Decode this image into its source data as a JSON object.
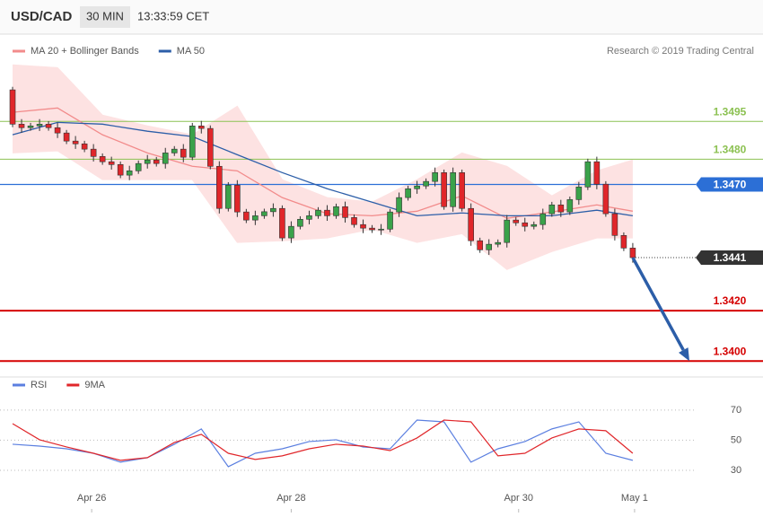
{
  "header": {
    "symbol": "USD/CAD",
    "interval": "30 MIN",
    "time": "13:33:59 CET"
  },
  "credit": "Research © 2019 Trading Central",
  "chart_data": [
    {
      "type": "candlestick",
      "up_color": "#3aa24a",
      "down_color": "#e0262a",
      "xlim": [
        -1.2,
        75.5
      ],
      "ylim": [
        1.33937,
        1.35271
      ],
      "x": [
        0,
        1,
        2,
        3,
        4,
        5,
        6,
        7,
        8,
        9,
        10,
        11,
        12,
        13,
        14,
        15,
        16,
        17,
        18,
        19,
        20,
        21,
        22,
        23,
        24,
        25,
        26,
        27,
        28,
        29,
        30,
        31,
        32,
        33,
        34,
        35,
        36,
        37,
        38,
        39,
        40,
        41,
        42,
        43,
        44,
        45,
        46,
        47,
        48,
        49,
        50,
        51,
        52,
        53,
        54,
        55,
        56,
        57,
        58,
        59,
        60,
        61,
        62,
        63,
        64,
        65,
        66,
        67,
        68,
        69
      ],
      "open": [
        1.35075,
        1.34939,
        1.34925,
        1.34932,
        1.34939,
        1.34925,
        1.34904,
        1.34872,
        1.34861,
        1.3484,
        1.34811,
        1.3479,
        1.34779,
        1.34737,
        1.34754,
        1.34783,
        1.34797,
        1.34783,
        1.34825,
        1.3484,
        1.34808,
        1.34932,
        1.34922,
        1.34772,
        1.34605,
        1.34697,
        1.34591,
        1.34559,
        1.34576,
        1.34592,
        1.34605,
        1.34488,
        1.34534,
        1.34562,
        1.34576,
        1.34598,
        1.34576,
        1.34612,
        1.34569,
        1.34541,
        1.34527,
        1.3452,
        1.34523,
        1.34591,
        1.34648,
        1.34683,
        1.34694,
        1.34712,
        1.34747,
        1.34612,
        1.34747,
        1.34605,
        1.34477,
        1.34441,
        1.34463,
        1.3447,
        1.34559,
        1.34548,
        1.34534,
        1.34541,
        1.34584,
        1.34619,
        1.34591,
        1.3464,
        1.3469,
        1.3479,
        1.34701,
        1.34584,
        1.34498,
        1.34448
      ],
      "high": [
        1.35087,
        1.34959,
        1.34944,
        1.34959,
        1.34951,
        1.34945,
        1.34916,
        1.34892,
        1.34873,
        1.3486,
        1.34823,
        1.3481,
        1.34791,
        1.34774,
        1.34795,
        1.34817,
        1.34809,
        1.34845,
        1.34852,
        1.3486,
        1.34944,
        1.34952,
        1.34934,
        1.34792,
        1.34709,
        1.34717,
        1.34603,
        1.34596,
        1.34604,
        1.34625,
        1.34617,
        1.34554,
        1.34574,
        1.34596,
        1.3461,
        1.34618,
        1.34624,
        1.34632,
        1.34581,
        1.34561,
        1.34539,
        1.34543,
        1.34603,
        1.34668,
        1.34695,
        1.34714,
        1.34724,
        1.34767,
        1.34759,
        1.34767,
        1.34759,
        1.34625,
        1.34489,
        1.34483,
        1.34482,
        1.34579,
        1.34571,
        1.34568,
        1.34553,
        1.34604,
        1.34631,
        1.34639,
        1.34652,
        1.3471,
        1.34802,
        1.3481,
        1.34713,
        1.34604,
        1.3451,
        1.34468
      ],
      "low": [
        1.34927,
        1.34905,
        1.34913,
        1.34912,
        1.34913,
        1.34884,
        1.3486,
        1.34841,
        1.34828,
        1.34791,
        1.34778,
        1.34759,
        1.34725,
        1.34717,
        1.34742,
        1.34763,
        1.34771,
        1.34763,
        1.34813,
        1.34788,
        1.34796,
        1.34902,
        1.3476,
        1.34585,
        1.34593,
        1.34571,
        1.34547,
        1.34539,
        1.34564,
        1.34572,
        1.34476,
        1.34468,
        1.34522,
        1.34542,
        1.34564,
        1.34556,
        1.34564,
        1.34549,
        1.34529,
        1.34507,
        1.34508,
        1.345,
        1.34511,
        1.34571,
        1.34636,
        1.34663,
        1.34682,
        1.34692,
        1.346,
        1.34592,
        1.34593,
        1.34457,
        1.34429,
        1.34421,
        1.34451,
        1.3445,
        1.34536,
        1.34514,
        1.34522,
        1.34521,
        1.34572,
        1.34571,
        1.34579,
        1.3462,
        1.34678,
        1.34681,
        1.34572,
        1.34478,
        1.34436,
        1.3439
      ],
      "close": [
        1.34939,
        1.34925,
        1.34932,
        1.34939,
        1.34925,
        1.34904,
        1.34872,
        1.34861,
        1.3484,
        1.34811,
        1.3479,
        1.34779,
        1.34737,
        1.34754,
        1.34783,
        1.34797,
        1.34783,
        1.34825,
        1.3484,
        1.34808,
        1.34932,
        1.34922,
        1.34772,
        1.34605,
        1.34697,
        1.34591,
        1.34559,
        1.34576,
        1.34592,
        1.34605,
        1.34488,
        1.34534,
        1.34562,
        1.34576,
        1.34598,
        1.34576,
        1.34612,
        1.34569,
        1.34541,
        1.34527,
        1.3452,
        1.34523,
        1.34591,
        1.34648,
        1.34683,
        1.34694,
        1.34712,
        1.34747,
        1.34612,
        1.34747,
        1.34605,
        1.34477,
        1.34441,
        1.34463,
        1.3447,
        1.34559,
        1.34548,
        1.34534,
        1.34541,
        1.34584,
        1.34619,
        1.34591,
        1.3464,
        1.3469,
        1.3479,
        1.34701,
        1.34584,
        1.34498,
        1.34448,
        1.3441
      ],
      "series": [
        {
          "name": "MA 20 + Bollinger Bands",
          "color": "#f28b8b",
          "band_color": "#fde2e2",
          "x": [
            0,
            5,
            10,
            15,
            20,
            25,
            30,
            35,
            40,
            45,
            50,
            55,
            60,
            65,
            69
          ],
          "values": [
            1.34986,
            1.35003,
            1.34897,
            1.34825,
            1.34772,
            1.34754,
            1.34648,
            1.34584,
            1.34576,
            1.34594,
            1.34655,
            1.34566,
            1.34591,
            1.34619,
            1.34594
          ],
          "upper": [
            1.35174,
            1.35163,
            1.34975,
            1.34932,
            1.34897,
            1.3501,
            1.34719,
            1.34648,
            1.3463,
            1.34719,
            1.34825,
            1.34772,
            1.34655,
            1.34754,
            1.34797
          ],
          "lower": [
            1.34825,
            1.34833,
            1.34719,
            1.34719,
            1.34719,
            1.3447,
            1.34477,
            1.34488,
            1.34523,
            1.3447,
            1.34505,
            1.34363,
            1.34434,
            1.34488,
            1.34488
          ]
        },
        {
          "name": "MA 50",
          "color": "#2c5ea8",
          "x": [
            0,
            5,
            10,
            15,
            20,
            25,
            30,
            35,
            40,
            45,
            50,
            55,
            60,
            65,
            69
          ],
          "values": [
            1.34897,
            1.34946,
            1.34939,
            1.34911,
            1.3489,
            1.34818,
            1.34747,
            1.34683,
            1.3463,
            1.34576,
            1.34587,
            1.34576,
            1.34576,
            1.34598,
            1.34576
          ]
        }
      ],
      "levels": [
        {
          "value": 1.3495,
          "label": "1.3495",
          "color": "#8cc152",
          "style": "thin",
          "label_style": "text"
        },
        {
          "value": 1.348,
          "label": "1.3480",
          "color": "#8cc152",
          "style": "thin",
          "label_style": "text"
        },
        {
          "value": 1.347,
          "label": "1.3470",
          "color": "#2c6fd6",
          "style": "medium",
          "label_style": "box"
        },
        {
          "value": 1.3441,
          "label": "1.3441",
          "color": "#333333",
          "style": "dotted",
          "label_style": "box"
        },
        {
          "value": 1.342,
          "label": "1.3420",
          "color": "#d50000",
          "style": "thick",
          "label_style": "text"
        },
        {
          "value": 1.34,
          "label": "1.3400",
          "color": "#d50000",
          "style": "thick",
          "label_style": "text"
        }
      ],
      "arrow_color": "#2c5ea8"
    },
    {
      "type": "line",
      "xlim": [
        -1.2,
        75.5
      ],
      "ylim": [
        5.5,
        80.1
      ],
      "yticks": [
        30,
        50,
        70
      ],
      "grid": true,
      "xticks": [
        {
          "value": 8.8,
          "label": "Apr 26"
        },
        {
          "value": 31,
          "label": "Apr 28"
        },
        {
          "value": 56.3,
          "label": "Apr 30"
        },
        {
          "value": 69.2,
          "label": "May 1"
        }
      ],
      "series": [
        {
          "name": "RSI",
          "color": "#5b7fe0",
          "x": [
            0,
            3,
            6,
            9,
            12,
            15,
            18,
            21,
            24,
            27,
            30,
            33,
            36,
            39,
            42,
            45,
            48,
            51,
            54,
            57,
            60,
            63,
            66,
            69
          ],
          "values": [
            47.3,
            46.1,
            44.3,
            41.3,
            35.4,
            38.4,
            47.3,
            57.5,
            32.4,
            41.3,
            44.3,
            49.1,
            50.3,
            45.5,
            44.3,
            63.4,
            62.2,
            35.4,
            44.3,
            49.1,
            57.5,
            62.2,
            41.3,
            36.6
          ]
        },
        {
          "name": "9MA",
          "color": "#e0262a",
          "x": [
            0,
            3,
            6,
            9,
            12,
            15,
            18,
            21,
            24,
            27,
            30,
            33,
            36,
            39,
            42,
            45,
            48,
            51,
            54,
            57,
            60,
            63,
            66,
            69
          ],
          "values": [
            61.0,
            50.3,
            45.5,
            41.3,
            36.6,
            38.4,
            48.5,
            53.9,
            41.3,
            37.2,
            39.6,
            44.3,
            47.3,
            46.1,
            43.1,
            51.5,
            63.4,
            62.2,
            39.6,
            41.3,
            51.5,
            57.5,
            56.3,
            41.3
          ]
        }
      ]
    }
  ]
}
